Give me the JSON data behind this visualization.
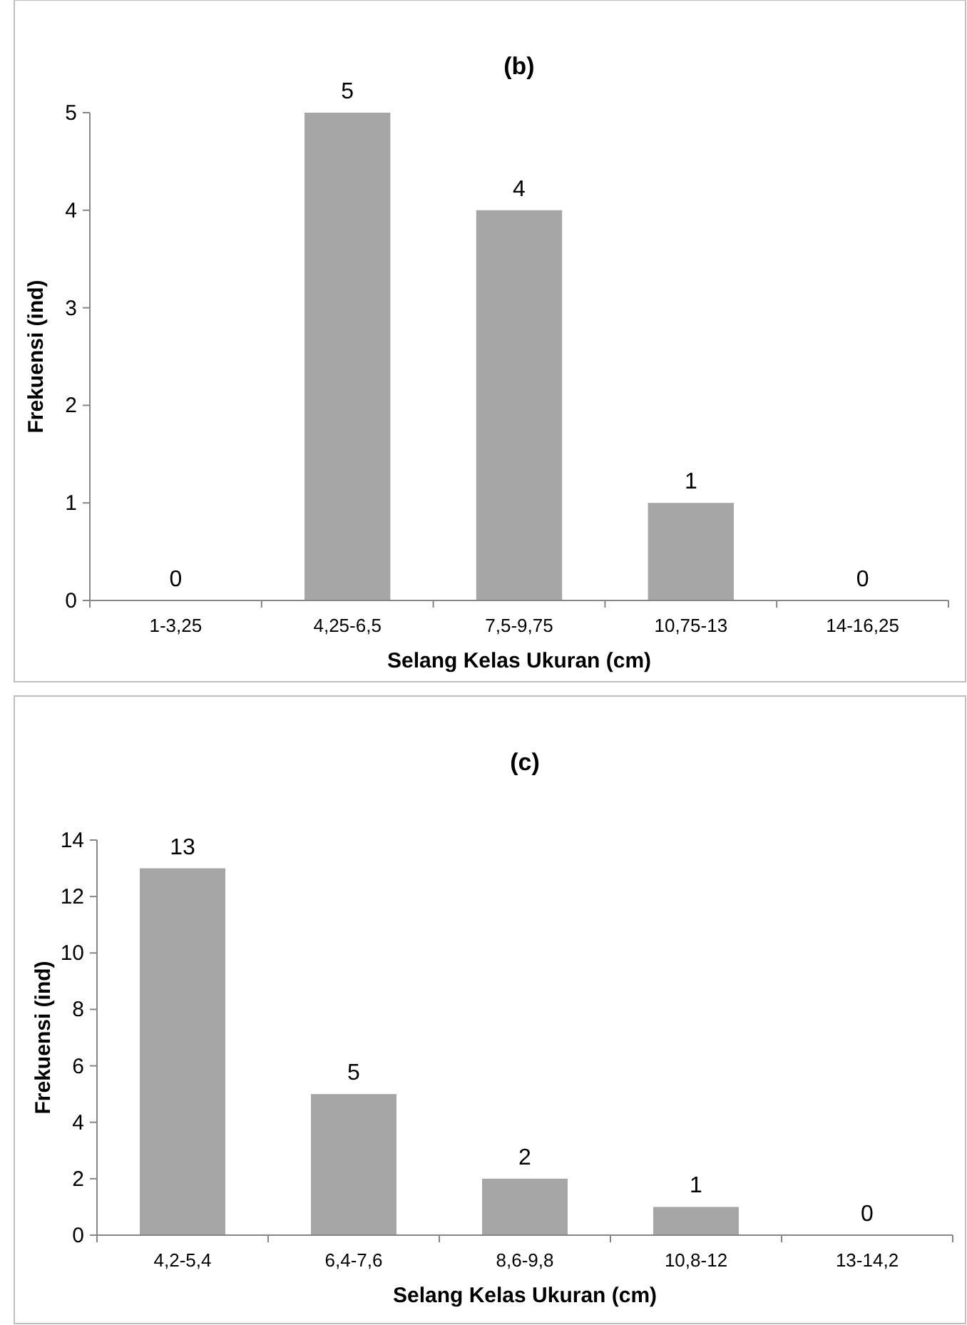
{
  "chart_data": [
    {
      "type": "bar",
      "title": "(b)",
      "xlabel": "Selang Kelas Ukuran (cm)",
      "ylabel": "Frekuensi (ind)",
      "categories": [
        "1-3,25",
        "4,25-6,5",
        "7,5-9,75",
        "10,75-13",
        "14-16,25"
      ],
      "values": [
        0,
        5,
        4,
        1,
        0
      ],
      "color": "#a6a6a6",
      "ylim": [
        0,
        5
      ],
      "yticks": [
        0,
        1,
        2,
        3,
        4,
        5
      ],
      "data_labels": true,
      "grid": false
    },
    {
      "type": "bar",
      "title": "(c)",
      "xlabel": "Selang Kelas Ukuran (cm)",
      "ylabel": "Frekuensi (ind)",
      "categories": [
        "4,2-5,4",
        "6,4-7,6",
        "8,6-9,8",
        "10,8-12",
        "13-14,2"
      ],
      "values": [
        13,
        5,
        2,
        1,
        0
      ],
      "color": "#a6a6a6",
      "ylim": [
        0,
        14
      ],
      "yticks": [
        0,
        2,
        4,
        6,
        8,
        10,
        12,
        14
      ],
      "data_labels": true,
      "grid": false
    }
  ]
}
